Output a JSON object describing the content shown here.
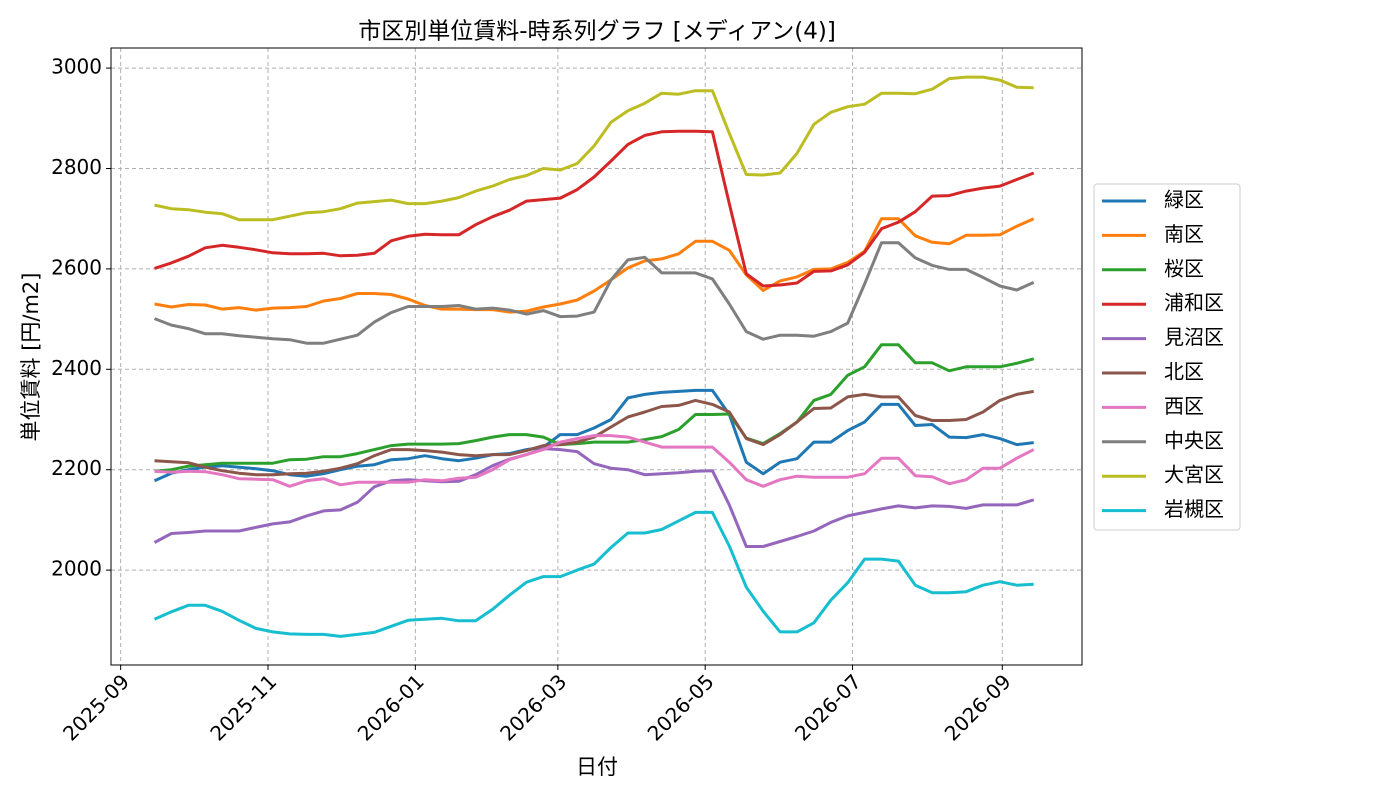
{
  "chart_data": {
    "type": "line",
    "title": "市区別単位賃料-時系列グラフ [メディアン(4)]",
    "x_label": "日付",
    "y_label": "単位賃料 [円/m2]",
    "x": [
      "2025-09-15",
      "2025-09-22",
      "2025-09-29",
      "2025-10-06",
      "2025-10-13",
      "2025-10-20",
      "2025-10-27",
      "2025-11-03",
      "2025-11-10",
      "2025-11-17",
      "2025-11-24",
      "2025-12-01",
      "2025-12-08",
      "2025-12-15",
      "2025-12-22",
      "2025-12-29",
      "2026-01-05",
      "2026-01-12",
      "2026-01-19",
      "2026-01-26",
      "2026-02-02",
      "2026-02-09",
      "2026-02-16",
      "2026-02-23",
      "2026-03-02",
      "2026-03-09",
      "2026-03-16",
      "2026-03-23",
      "2026-03-30",
      "2026-04-06",
      "2026-04-13",
      "2026-04-20",
      "2026-04-27",
      "2026-05-04",
      "2026-05-11",
      "2026-05-18",
      "2026-05-25",
      "2026-06-01",
      "2026-06-08",
      "2026-06-15",
      "2026-06-22",
      "2026-06-29",
      "2026-07-06",
      "2026-07-13",
      "2026-07-20",
      "2026-07-27",
      "2026-08-03",
      "2026-08-10",
      "2026-08-17",
      "2026-08-24",
      "2026-08-31",
      "2026-09-07",
      "2026-09-14"
    ],
    "xlim": [
      "2025-08-28",
      "2026-10-04"
    ],
    "xticks": [
      "2025-09",
      "2025-11",
      "2026-01",
      "2026-03",
      "2026-05",
      "2026-07",
      "2026-09"
    ],
    "ylim": [
      1811,
      3040
    ],
    "yticks": [
      2000,
      2200,
      2400,
      2600,
      2800,
      3000
    ],
    "grid": true,
    "legend": "outside right",
    "series": [
      {
        "name": "緑区",
        "color": "#1f77b4",
        "values": [
          2178,
          2193,
          2200,
          2205,
          2208,
          2205,
          2202,
          2198,
          2190,
          2187,
          2192,
          2200,
          2207,
          2210,
          2220,
          2222,
          2228,
          2222,
          2218,
          2223,
          2230,
          2232,
          2240,
          2245,
          2270,
          2270,
          2283,
          2300,
          2343,
          2350,
          2354,
          2356,
          2358,
          2358,
          2310,
          2215,
          2192,
          2215,
          2222,
          2255,
          2255,
          2278,
          2295,
          2330,
          2330,
          2288,
          2290,
          2265,
          2264,
          2270,
          2262,
          2250,
          2254
        ]
      },
      {
        "name": "南区",
        "color": "#ff7f0e",
        "values": [
          2530,
          2524,
          2529,
          2528,
          2520,
          2523,
          2518,
          2522,
          2523,
          2525,
          2536,
          2541,
          2551,
          2551,
          2549,
          2540,
          2527,
          2520,
          2520,
          2519,
          2519,
          2514,
          2516,
          2524,
          2530,
          2538,
          2556,
          2578,
          2602,
          2616,
          2620,
          2630,
          2655,
          2655,
          2637,
          2588,
          2557,
          2576,
          2584,
          2599,
          2600,
          2613,
          2635,
          2700,
          2700,
          2666,
          2653,
          2650,
          2667,
          2667,
          2668,
          2685,
          2700
        ]
      },
      {
        "name": "桜区",
        "color": "#2ca02c",
        "values": [
          2197,
          2200,
          2207,
          2210,
          2213,
          2213,
          2213,
          2213,
          2220,
          2221,
          2226,
          2226,
          2232,
          2240,
          2248,
          2251,
          2251,
          2251,
          2252,
          2258,
          2265,
          2270,
          2270,
          2265,
          2250,
          2252,
          2255,
          2255,
          2255,
          2260,
          2266,
          2280,
          2310,
          2310,
          2311,
          2263,
          2252,
          2272,
          2295,
          2338,
          2350,
          2388,
          2405,
          2449,
          2449,
          2413,
          2413,
          2397,
          2405,
          2405,
          2405,
          2412,
          2421
        ]
      },
      {
        "name": "浦和区",
        "color": "#d62728",
        "values": [
          2601,
          2612,
          2625,
          2642,
          2647,
          2643,
          2638,
          2632,
          2630,
          2630,
          2631,
          2626,
          2627,
          2631,
          2656,
          2665,
          2669,
          2668,
          2668,
          2688,
          2704,
          2717,
          2735,
          2738,
          2741,
          2758,
          2783,
          2815,
          2848,
          2866,
          2873,
          2874,
          2874,
          2873,
          2730,
          2590,
          2566,
          2568,
          2572,
          2595,
          2596,
          2608,
          2633,
          2680,
          2693,
          2714,
          2745,
          2746,
          2755,
          2761,
          2765,
          2778,
          2791
        ]
      },
      {
        "name": "見沼区",
        "color": "#9467bd",
        "values": [
          2055,
          2073,
          2075,
          2078,
          2078,
          2078,
          2085,
          2092,
          2096,
          2108,
          2118,
          2120,
          2135,
          2166,
          2178,
          2180,
          2178,
          2176,
          2177,
          2190,
          2208,
          2221,
          2230,
          2242,
          2240,
          2236,
          2212,
          2203,
          2200,
          2190,
          2192,
          2194,
          2197,
          2198,
          2130,
          2047,
          2047,
          2057,
          2067,
          2078,
          2095,
          2108,
          2115,
          2122,
          2128,
          2124,
          2128,
          2127,
          2123,
          2130,
          2130,
          2130,
          2140
        ]
      },
      {
        "name": "北区",
        "color": "#8c564b",
        "values": [
          2218,
          2216,
          2214,
          2205,
          2198,
          2193,
          2190,
          2190,
          2192,
          2193,
          2197,
          2203,
          2212,
          2228,
          2240,
          2240,
          2238,
          2235,
          2230,
          2228,
          2230,
          2230,
          2238,
          2248,
          2250,
          2255,
          2265,
          2285,
          2305,
          2315,
          2326,
          2328,
          2338,
          2330,
          2315,
          2262,
          2250,
          2270,
          2295,
          2322,
          2323,
          2345,
          2350,
          2345,
          2345,
          2308,
          2298,
          2298,
          2300,
          2315,
          2338,
          2350,
          2356
        ]
      },
      {
        "name": "西区",
        "color": "#e377c2",
        "values": [
          2197,
          2195,
          2197,
          2196,
          2190,
          2182,
          2181,
          2180,
          2167,
          2178,
          2182,
          2170,
          2175,
          2175,
          2175,
          2175,
          2180,
          2178,
          2183,
          2185,
          2200,
          2220,
          2230,
          2240,
          2255,
          2262,
          2268,
          2268,
          2265,
          2255,
          2245,
          2245,
          2245,
          2245,
          2215,
          2180,
          2167,
          2180,
          2187,
          2185,
          2185,
          2185,
          2192,
          2223,
          2223,
          2188,
          2186,
          2172,
          2180,
          2203,
          2203,
          2223,
          2240
        ]
      },
      {
        "name": "中央区",
        "color": "#7f7f7f",
        "values": [
          2501,
          2488,
          2481,
          2471,
          2471,
          2467,
          2464,
          2461,
          2459,
          2452,
          2452,
          2460,
          2468,
          2494,
          2513,
          2525,
          2525,
          2525,
          2527,
          2520,
          2522,
          2518,
          2510,
          2517,
          2505,
          2506,
          2514,
          2578,
          2618,
          2623,
          2592,
          2592,
          2592,
          2580,
          2530,
          2475,
          2460,
          2468,
          2468,
          2466,
          2475,
          2492,
          2570,
          2652,
          2652,
          2622,
          2607,
          2599,
          2599,
          2583,
          2566,
          2558,
          2573
        ]
      },
      {
        "name": "大宮区",
        "color": "#bcbd22",
        "values": [
          2727,
          2720,
          2718,
          2713,
          2710,
          2698,
          2698,
          2698,
          2705,
          2712,
          2714,
          2720,
          2731,
          2734,
          2737,
          2730,
          2730,
          2735,
          2742,
          2755,
          2765,
          2778,
          2786,
          2800,
          2797,
          2810,
          2845,
          2892,
          2915,
          2930,
          2950,
          2948,
          2955,
          2955,
          2870,
          2788,
          2787,
          2791,
          2830,
          2888,
          2912,
          2923,
          2928,
          2950,
          2950,
          2949,
          2958,
          2979,
          2982,
          2982,
          2976,
          2962,
          2961
        ]
      },
      {
        "name": "岩槻区",
        "color": "#17becf",
        "values": [
          1902,
          1917,
          1930,
          1930,
          1918,
          1900,
          1884,
          1877,
          1873,
          1872,
          1872,
          1868,
          1872,
          1876,
          1888,
          1900,
          1902,
          1904,
          1899,
          1899,
          1922,
          1950,
          1976,
          1987,
          1987,
          2000,
          2012,
          2045,
          2074,
          2074,
          2081,
          2098,
          2115,
          2115,
          2048,
          1966,
          1918,
          1877,
          1877,
          1895,
          1940,
          1975,
          2022,
          2022,
          2018,
          1970,
          1955,
          1955,
          1957,
          1970,
          1977,
          1970,
          1972
        ]
      }
    ]
  }
}
